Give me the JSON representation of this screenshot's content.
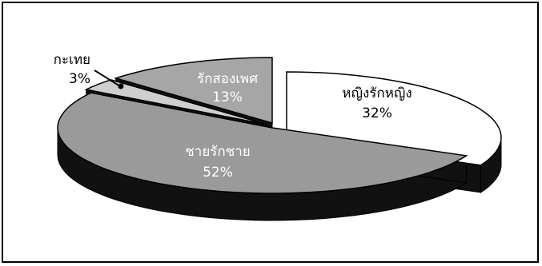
{
  "chart_data": {
    "type": "pie",
    "style": "3d-exploded",
    "title": "",
    "slices": [
      {
        "label": "หญิงรักหญิง",
        "value": 32,
        "value_text": "32%",
        "color": "#ffffff"
      },
      {
        "label": "ชายรักชาย",
        "value": 52,
        "value_text": "52%",
        "color": "#9a9a9a"
      },
      {
        "label": "กะเทย",
        "value": 3,
        "value_text": "3%",
        "color": "#cfcfcf"
      },
      {
        "label": "รักสองเพศ",
        "value": 13,
        "value_text": "13%",
        "color": "#a6a6a6"
      }
    ],
    "label_color_inside_dark": "#ffffff",
    "label_color_inside_light": "#000000",
    "edge_color": "#000000"
  }
}
